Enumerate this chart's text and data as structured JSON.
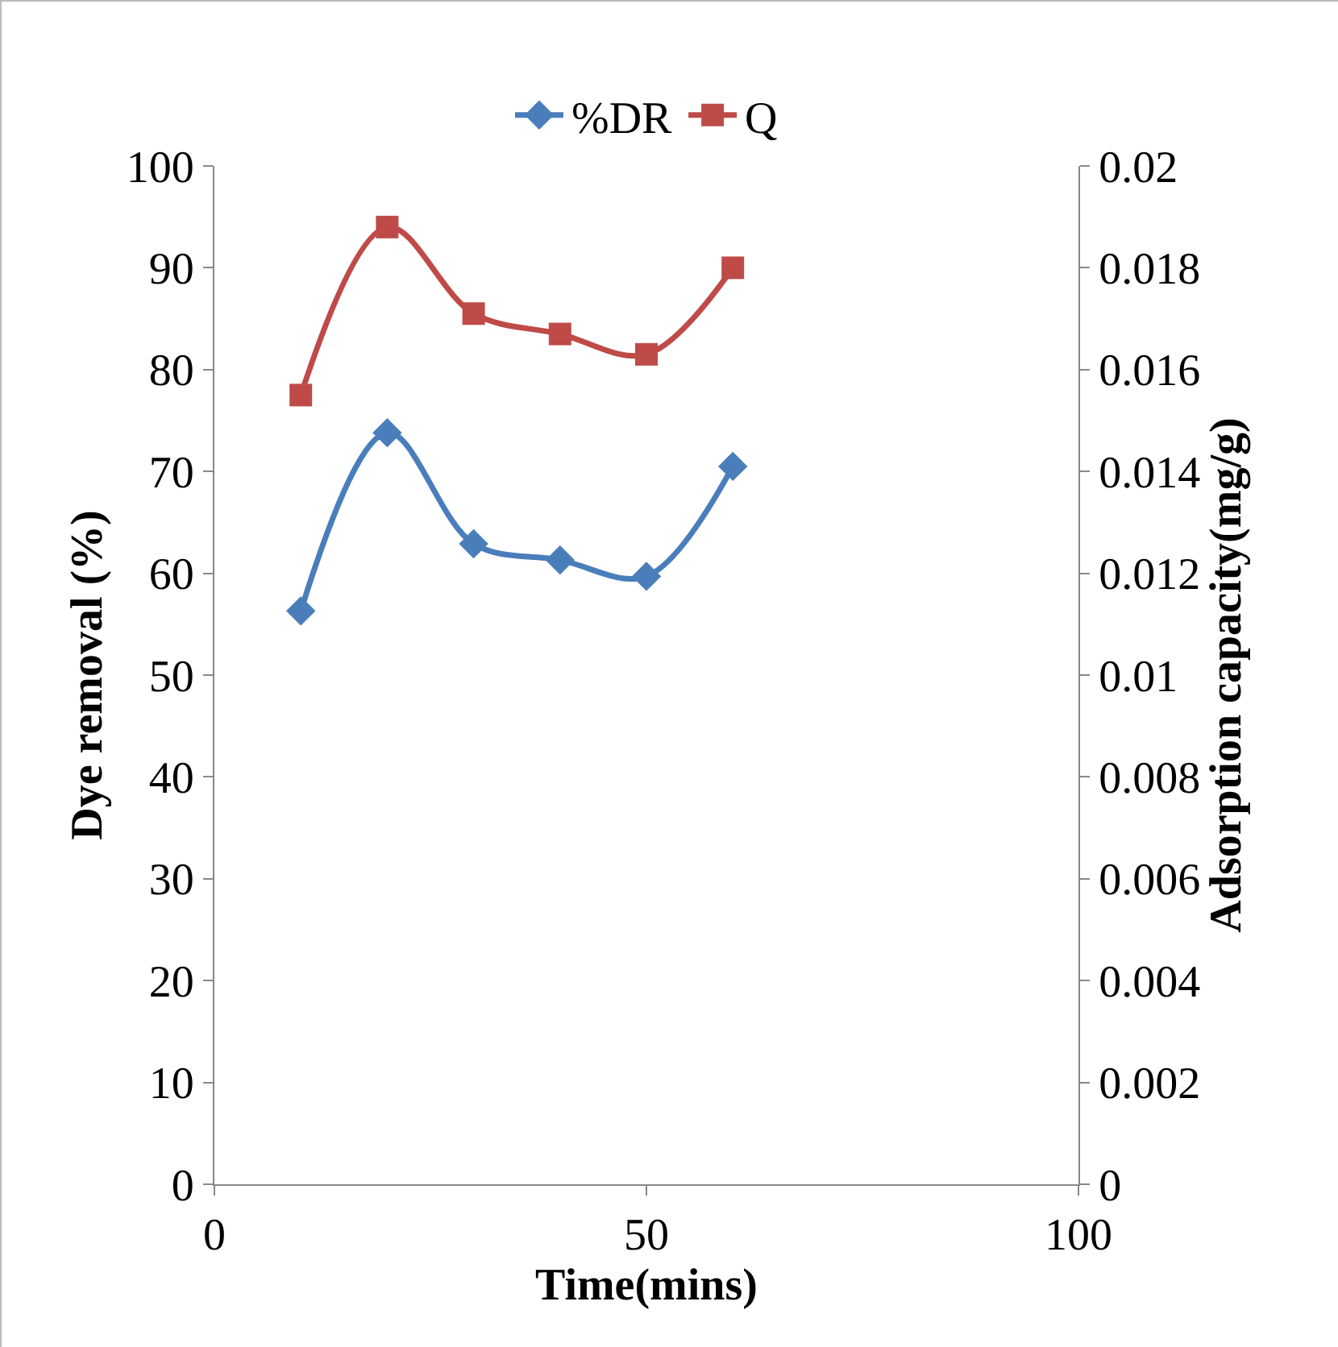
{
  "chart_data": {
    "type": "line",
    "xlabel": "Time(mins)",
    "ylabel": "Dye removal (%)",
    "y2label": "Adsorption capacity(mg/g)",
    "x": [
      10,
      20,
      30,
      40,
      50,
      60
    ],
    "series": [
      {
        "name": "%DR",
        "color": "#4a7ebb",
        "marker": "diamond",
        "values": [
          56.3,
          73.8,
          62.9,
          61.3,
          59.7,
          70.5
        ]
      },
      {
        "name": "Q",
        "color": "#be4b48",
        "marker": "square",
        "axis": "y2",
        "values": [
          0.0155,
          0.0188,
          0.0171,
          0.0167,
          0.0163,
          0.018
        ]
      }
    ],
    "xlim": [
      0,
      100
    ],
    "xticks": [
      0,
      50,
      100
    ],
    "ylim": [
      0,
      100
    ],
    "yticks": [
      0,
      10,
      20,
      30,
      40,
      50,
      60,
      70,
      80,
      90,
      100
    ],
    "y2lim": [
      0,
      0.02
    ],
    "y2ticks": [
      0,
      0.002,
      0.004,
      0.006,
      0.008,
      0.01,
      0.012,
      0.014,
      0.016,
      0.018,
      0.02
    ],
    "grid": false,
    "legend": "top",
    "line_style": "solid"
  }
}
